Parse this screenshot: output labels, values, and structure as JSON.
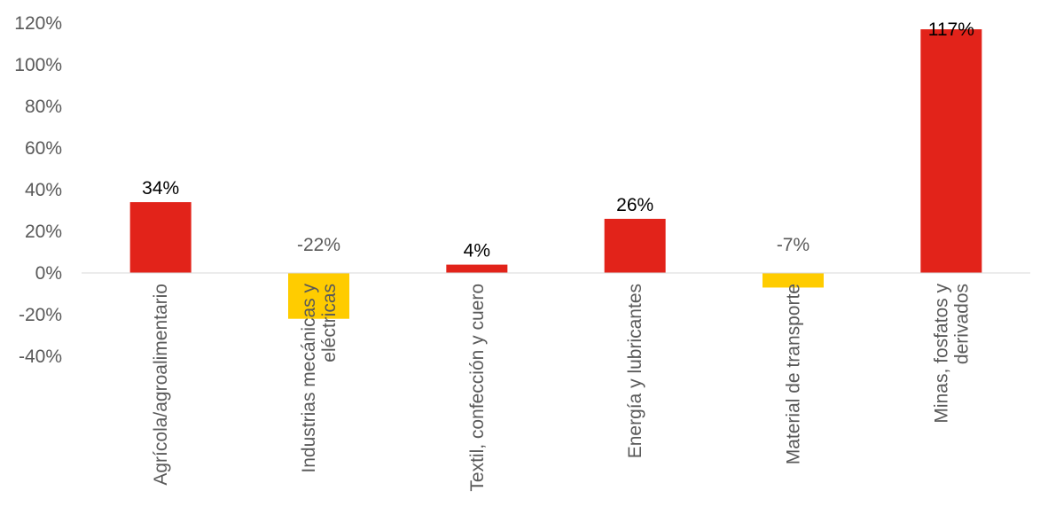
{
  "chart_data": {
    "type": "bar",
    "categories": [
      [
        "Agrícola/agroalimentario"
      ],
      [
        "Industrias mecánicas y",
        "eléctricas"
      ],
      [
        "Textil, confección y cuero"
      ],
      [
        "Energía y lubricantes"
      ],
      [
        "Material de transporte"
      ],
      [
        "Minas, fosfatos y",
        "derivados"
      ]
    ],
    "values": [
      34,
      -22,
      4,
      26,
      -7,
      117
    ],
    "data_labels": [
      "34%",
      "-22%",
      "4%",
      "26%",
      "-7%",
      "117%"
    ],
    "yticks": [
      "-40%",
      "-20%",
      "0%",
      "20%",
      "40%",
      "60%",
      "80%",
      "100%",
      "120%"
    ],
    "ytick_values": [
      -40,
      -20,
      0,
      20,
      40,
      60,
      80,
      100,
      120
    ],
    "ylim": [
      -40,
      120
    ],
    "grid": false,
    "legend": "none",
    "colors": {
      "positive": "#E2231A",
      "negative": "#FFCC00",
      "axis": "#D9D9D9",
      "tick_text": "#595959",
      "label_positive": "#000000",
      "label_negative": "#595959"
    }
  }
}
